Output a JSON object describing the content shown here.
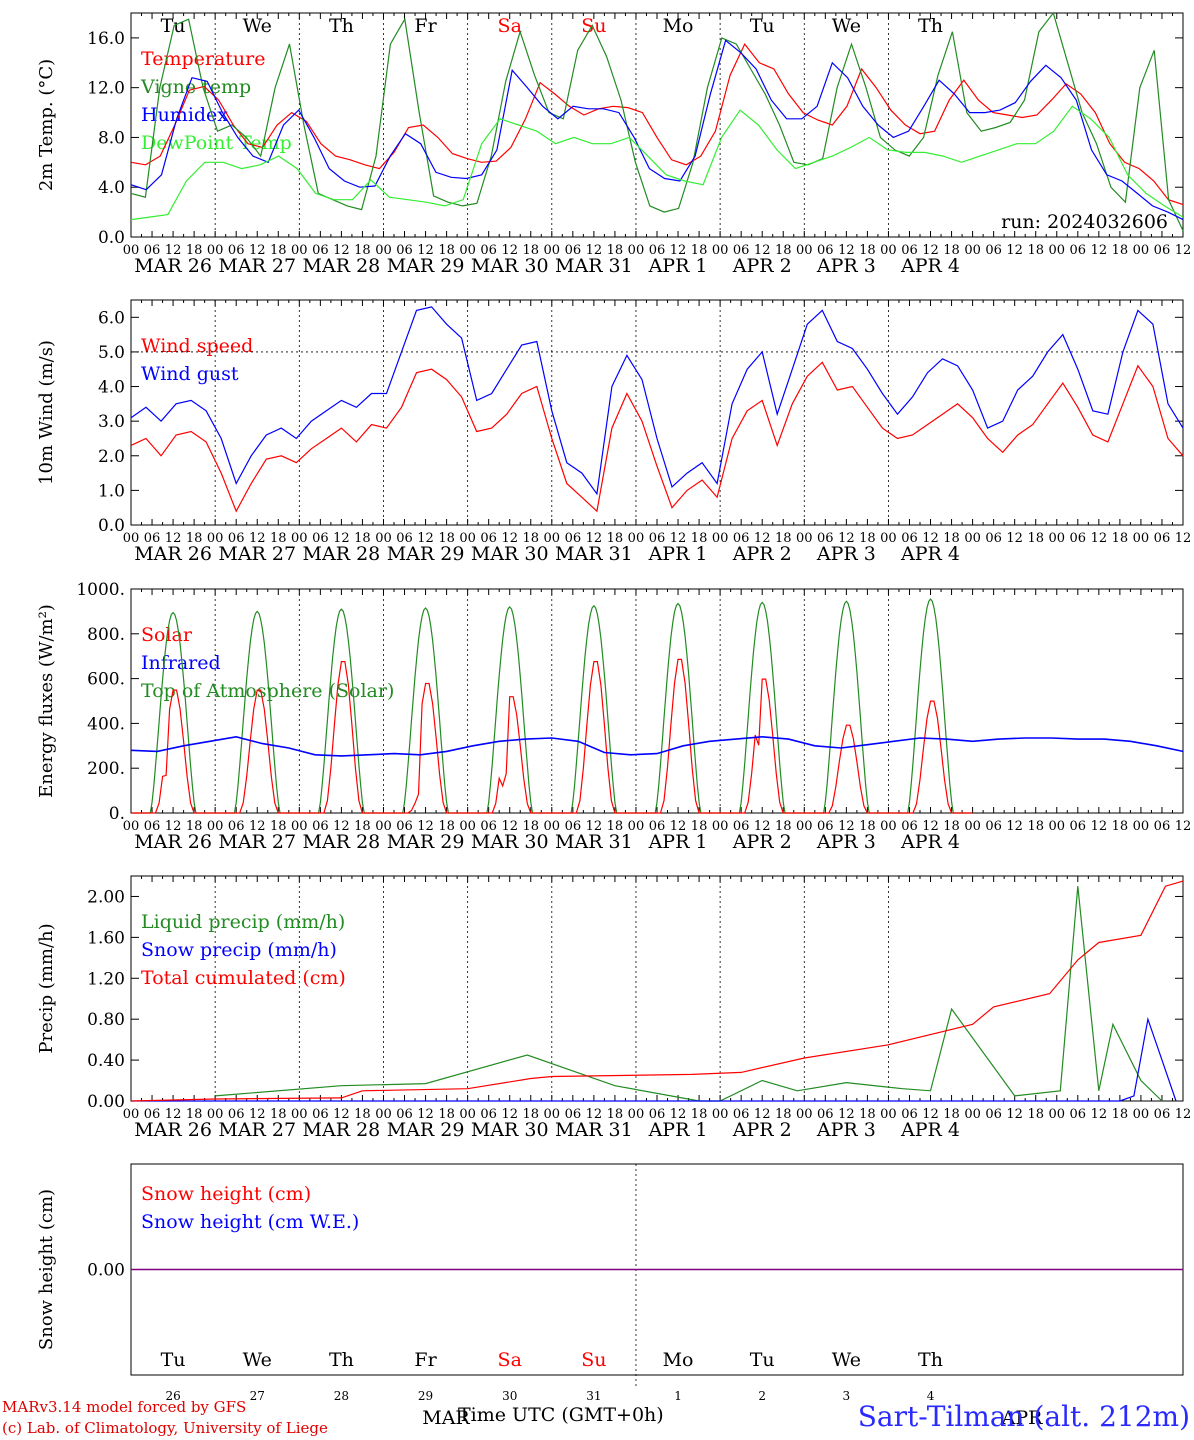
{
  "run_label": "run: 2024032606",
  "footer": {
    "credit_line1": "MARv3.14 model forced by GFS",
    "credit_line2": "(c) Lab. of Climatology, University of Liege",
    "station": "Sart-Tilman (alt. 212m)",
    "time_axis_label": "Time UTC (GMT+0h)",
    "month_start": "MAR",
    "month_end": "APR"
  },
  "colors": {
    "red": "#ff0000",
    "darkgreen": "#228B22",
    "blue": "#0000ff",
    "lightgreen": "#33ee33",
    "purple": "#800080",
    "weekend": "#ff0000"
  },
  "days": [
    {
      "abbr": "Tu",
      "date": "MAR 26",
      "num": "26",
      "weekend": false
    },
    {
      "abbr": "We",
      "date": "MAR 27",
      "num": "27",
      "weekend": false
    },
    {
      "abbr": "Th",
      "date": "MAR 28",
      "num": "28",
      "weekend": false
    },
    {
      "abbr": "Fr",
      "date": "MAR 29",
      "num": "29",
      "weekend": false
    },
    {
      "abbr": "Sa",
      "date": "MAR 30",
      "num": "30",
      "weekend": true
    },
    {
      "abbr": "Su",
      "date": "MAR 31",
      "num": "31",
      "weekend": true
    },
    {
      "abbr": "Mo",
      "date": "APR  1",
      "num": "1",
      "weekend": false
    },
    {
      "abbr": "Tu",
      "date": "APR  2",
      "num": "2",
      "weekend": false
    },
    {
      "abbr": "We",
      "date": "APR  3",
      "num": "3",
      "weekend": false
    },
    {
      "abbr": "Th",
      "date": "APR  4",
      "num": "4",
      "weekend": false
    }
  ],
  "hour_ticks": [
    "00",
    "06",
    "12",
    "18"
  ],
  "chart_data": [
    {
      "type": "line",
      "ylabel": "2m Temp. (°C)",
      "ylim": [
        0,
        18
      ],
      "yticks": [
        "0.0",
        "4.0",
        "8.0",
        "12.0",
        "16.0"
      ],
      "x": "hours since 2024-03-26 00 UTC (3h steps)",
      "series": [
        {
          "name": "Temperature",
          "color": "#ff0000",
          "values": [
            6,
            5.8,
            6.5,
            9,
            11.8,
            12.1,
            11,
            9,
            7.5,
            7.2,
            9,
            10,
            9.3,
            7.5,
            6.5,
            6.2,
            5.8,
            5.5,
            6.8,
            8.8,
            9,
            8,
            6.7,
            6.3,
            6,
            6.1,
            7.2,
            9.5,
            12.4,
            11.5,
            10.5,
            9.8,
            10.3,
            10.5,
            10.4,
            10,
            8,
            6.2,
            5.8,
            6.5,
            8.5,
            13,
            15.5,
            14,
            13.5,
            11.5,
            10,
            9.4,
            9,
            10.5,
            13.5,
            12,
            10.2,
            9,
            8.3,
            8.5,
            11,
            12.6,
            11,
            10,
            9.8,
            9.6,
            9.8,
            11,
            12.3,
            11.5,
            10,
            7.5,
            6,
            5.5,
            4.5,
            3,
            2.6
          ]
        },
        {
          "name": "Vigne temp",
          "color": "#228B22",
          "values": [
            3.5,
            3.2,
            12,
            17,
            17.5,
            12,
            8.5,
            9,
            8,
            6.5,
            12,
            15.5,
            9,
            3.5,
            3,
            2.5,
            2.2,
            6.5,
            15.5,
            17.5,
            10,
            3.3,
            2.8,
            2.5,
            2.7,
            6.5,
            12.5,
            16.5,
            13,
            10,
            9.5,
            15,
            17,
            14.5,
            11,
            6,
            2.5,
            2,
            2.3,
            6,
            12,
            16,
            15.5,
            13.5,
            11.5,
            9,
            6,
            5.8,
            6.3,
            12,
            15.5,
            12,
            8,
            7,
            6.5,
            8,
            13,
            16.5,
            10,
            8.5,
            8.8,
            9.2,
            11,
            16.5,
            18,
            14,
            10,
            7.5,
            4,
            2.8,
            12,
            15,
            3,
            0.5
          ]
        },
        {
          "name": "Humidex",
          "color": "#0000ff",
          "values": [
            4.2,
            3.8,
            5,
            9.5,
            12.8,
            12.5,
            10,
            8,
            6.5,
            6,
            9,
            10.2,
            8,
            5.5,
            4.5,
            4,
            4.1,
            6.5,
            8.3,
            7.5,
            5.2,
            4.8,
            4.7,
            5,
            7,
            13.4,
            12,
            10.5,
            9.5,
            10.5,
            10.3,
            10.3,
            10,
            8,
            5.5,
            4.7,
            4.5,
            6.5,
            11.5,
            15.8,
            14.8,
            13.5,
            11,
            9.5,
            9.5,
            10.5,
            14,
            12.8,
            10.5,
            9,
            8,
            8.5,
            10.5,
            12.6,
            11.5,
            10,
            10,
            10.2,
            10.8,
            12.5,
            13.8,
            12.8,
            11,
            7,
            5,
            4.5,
            3.5,
            2.5,
            2,
            1.4
          ]
        },
        {
          "name": "DewPoint Temp",
          "color": "#33ee33",
          "values": [
            1.4,
            1.6,
            1.8,
            4.5,
            6,
            6,
            5.5,
            5.8,
            6.5,
            5.5,
            3.5,
            3,
            3,
            4.6,
            3.2,
            3,
            2.8,
            2.5,
            3,
            7.5,
            9.5,
            9,
            8.5,
            7.5,
            8,
            7.5,
            7.5,
            8,
            6.5,
            5,
            4.5,
            4.2,
            8,
            10.2,
            9,
            7,
            5.5,
            6,
            6.5,
            7.2,
            8,
            7,
            6.8,
            6.8,
            6.5,
            6,
            6.5,
            7,
            7.5,
            7.5,
            8.5,
            10.5,
            9.5,
            8,
            5,
            3.5,
            2.5,
            1.6
          ]
        }
      ]
    },
    {
      "type": "line",
      "ylabel": "10m Wind (m/s)",
      "ylim": [
        0,
        6.5
      ],
      "yticks": [
        "0.0",
        "1.0",
        "2.0",
        "3.0",
        "4.0",
        "5.0",
        "6.0"
      ],
      "reference_line": 5.0,
      "series": [
        {
          "name": "Wind speed",
          "color": "#ff0000",
          "values": [
            2.3,
            2.5,
            2,
            2.6,
            2.7,
            2.4,
            1.5,
            0.4,
            1.2,
            1.9,
            2,
            1.8,
            2.2,
            2.5,
            2.8,
            2.4,
            2.9,
            2.8,
            3.4,
            4.4,
            4.5,
            4.2,
            3.7,
            2.7,
            2.8,
            3.2,
            3.8,
            4,
            2.5,
            1.2,
            0.8,
            0.4,
            2.8,
            3.8,
            3,
            1.7,
            0.5,
            1,
            1.3,
            0.8,
            2.5,
            3.3,
            3.6,
            2.3,
            3.5,
            4.3,
            4.7,
            3.9,
            4,
            3.4,
            2.8,
            2.5,
            2.6,
            2.9,
            3.2,
            3.5,
            3.1,
            2.5,
            2.1,
            2.6,
            2.9,
            3.5,
            4.1,
            3.4,
            2.6,
            2.4,
            3.5,
            4.6,
            4,
            2.5,
            2
          ]
        },
        {
          "name": "Wind gust",
          "color": "#0000ff",
          "values": [
            3.1,
            3.4,
            3,
            3.5,
            3.6,
            3.3,
            2.5,
            1.2,
            2,
            2.6,
            2.8,
            2.5,
            3,
            3.3,
            3.6,
            3.4,
            3.8,
            3.8,
            5,
            6.2,
            6.3,
            5.8,
            5.4,
            3.6,
            3.8,
            4.5,
            5.2,
            5.3,
            3.3,
            1.8,
            1.5,
            0.9,
            4,
            4.9,
            4.2,
            2.5,
            1.1,
            1.5,
            1.8,
            1.2,
            3.5,
            4.5,
            5,
            3.2,
            4.5,
            5.8,
            6.2,
            5.3,
            5.1,
            4.5,
            3.8,
            3.2,
            3.7,
            4.4,
            4.8,
            4.6,
            3.9,
            2.8,
            3,
            3.9,
            4.3,
            5,
            5.5,
            4.5,
            3.3,
            3.2,
            5,
            6.2,
            5.8,
            3.5,
            2.8
          ]
        }
      ]
    },
    {
      "type": "line",
      "ylabel": "Energy fluxes (W/m²)",
      "ylim": [
        0,
        1000
      ],
      "yticks": [
        "0.",
        "200.",
        "400.",
        "600.",
        "800.",
        "1000."
      ],
      "series": [
        {
          "name": "Solar",
          "color": "#ff0000",
          "peaks": [
            560,
            560,
            690,
            590,
            530,
            690,
            700,
            610,
            400,
            510
          ]
        },
        {
          "name": "Infrared",
          "color": "#0000ff",
          "values": [
            280,
            275,
            300,
            320,
            340,
            310,
            290,
            260,
            255,
            260,
            265,
            260,
            275,
            300,
            320,
            330,
            335,
            320,
            270,
            260,
            265,
            300,
            320,
            330,
            340,
            330,
            300,
            290,
            305,
            320,
            335,
            330,
            320,
            330,
            335,
            335,
            330,
            330,
            320,
            300,
            275
          ]
        },
        {
          "name": "Top of Atmosphere (Solar)",
          "color": "#228B22",
          "peaks": [
            895,
            900,
            910,
            915,
            920,
            925,
            935,
            940,
            945,
            955
          ]
        }
      ]
    },
    {
      "type": "line",
      "ylabel": "Precip (mm/h)",
      "ylim": [
        0,
        2.2
      ],
      "yticks": [
        "0.00",
        "0.40",
        "0.80",
        "1.20",
        "1.60",
        "2.00"
      ],
      "series": [
        {
          "name": "Liquid precip (mm/h)",
          "color": "#228B22",
          "values": [
            [
              24,
              0.05
            ],
            [
              60,
              0.15
            ],
            [
              84,
              0.17
            ],
            [
              113,
              0.45
            ],
            [
              138,
              0.15
            ],
            [
              162,
              0
            ],
            [
              168,
              0
            ],
            [
              180,
              0.2
            ],
            [
              190,
              0.1
            ],
            [
              204,
              0.18
            ],
            [
              220,
              0.12
            ],
            [
              228,
              0.1
            ],
            [
              234,
              0.9
            ],
            [
              252,
              0.05
            ],
            [
              265,
              0.1
            ],
            [
              270,
              2.1
            ],
            [
              276,
              0.1
            ],
            [
              280,
              0.75
            ],
            [
              288,
              0.2
            ],
            [
              294,
              0
            ]
          ]
        },
        {
          "name": "Snow precip (mm/h)",
          "color": "#0000ff",
          "values": [
            [
              0,
              0
            ],
            [
              282,
              0
            ],
            [
              286,
              0.05
            ],
            [
              290,
              0.8
            ],
            [
              294,
              0.4
            ],
            [
              298,
              0
            ]
          ]
        },
        {
          "name": "Total cumulated (cm)",
          "color": "#ff0000",
          "values": [
            [
              0,
              0
            ],
            [
              24,
              0.02
            ],
            [
              60,
              0.03
            ],
            [
              66,
              0.1
            ],
            [
              96,
              0.12
            ],
            [
              114,
              0.22
            ],
            [
              120,
              0.24
            ],
            [
              160,
              0.26
            ],
            [
              174,
              0.28
            ],
            [
              192,
              0.42
            ],
            [
              216,
              0.55
            ],
            [
              240,
              0.75
            ],
            [
              246,
              0.92
            ],
            [
              262,
              1.05
            ],
            [
              270,
              1.38
            ],
            [
              276,
              1.55
            ],
            [
              288,
              1.62
            ],
            [
              295,
              2.1
            ],
            [
              300,
              2.15
            ]
          ]
        }
      ]
    },
    {
      "type": "line",
      "ylabel": "Snow height (cm)",
      "yticks": [
        "0.00"
      ],
      "series": [
        {
          "name": "Snow height (cm)",
          "color": "#ff0000",
          "values": [
            0
          ]
        },
        {
          "name": "Snow height (cm W.E.)",
          "color": "#0000ff",
          "values": [
            0
          ]
        }
      ]
    }
  ]
}
